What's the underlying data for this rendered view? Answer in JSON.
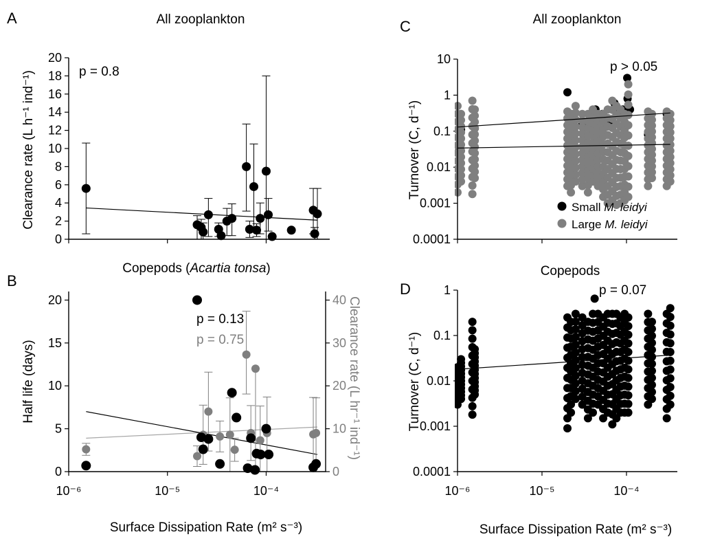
{
  "colors": {
    "black": "#000000",
    "gray": "#7f7f7f",
    "light_gray": "#a6a6a6"
  },
  "footer": {
    "xlabel_left": "Surface Dissipation Rate (m² s⁻³)",
    "xlabel_right": "Surface Dissipation Rate (m² s⁻³)"
  },
  "chart_data": [
    {
      "id": "A",
      "type": "scatter",
      "letter": "A",
      "title": "All zooplankton",
      "ylabel": "Clearance rate (L h⁻¹ ind⁻¹)",
      "x_scale": "log",
      "xlim": [
        1e-06,
        0.0004
      ],
      "ylim": [
        0,
        20
      ],
      "yticks": [
        0,
        2,
        4,
        6,
        8,
        10,
        12,
        14,
        16,
        18,
        20
      ],
      "annotation": "p = 0.8",
      "points": [
        {
          "x": 1.5e-06,
          "y": 5.6,
          "lo": 0.6,
          "hi": 10.6
        },
        {
          "x": 2e-05,
          "y": 1.6,
          "lo": 0.0,
          "hi": 2.6
        },
        {
          "x": 2.2e-05,
          "y": 1.3,
          "lo": 0.0,
          "hi": 2.2
        },
        {
          "x": 2.3e-05,
          "y": 0.8,
          "lo": 0.0,
          "hi": 1.8
        },
        {
          "x": 2.6e-05,
          "y": 2.7,
          "lo": 0.3,
          "hi": 4.5
        },
        {
          "x": 3.3e-05,
          "y": 1.1,
          "lo": 0.3,
          "hi": 1.8
        },
        {
          "x": 3.5e-05,
          "y": 0.4
        },
        {
          "x": 4e-05,
          "y": 2.0,
          "lo": 0.4,
          "hi": 3.4
        },
        {
          "x": 4.5e-05,
          "y": 2.3,
          "lo": 0.4,
          "hi": 3.9
        },
        {
          "x": 6.3e-05,
          "y": 8.0,
          "lo": 3.1,
          "hi": 12.7
        },
        {
          "x": 6.8e-05,
          "y": 1.1,
          "lo": 0.2,
          "hi": 2.0
        },
        {
          "x": 7.5e-05,
          "y": 5.8,
          "lo": 1.1,
          "hi": 10.5
        },
        {
          "x": 8e-05,
          "y": 1.0,
          "lo": 0.3,
          "hi": 1.7
        },
        {
          "x": 8.7e-05,
          "y": 2.3,
          "lo": 0.6,
          "hi": 4.0
        },
        {
          "x": 0.0001,
          "y": 7.5,
          "lo": 0.0,
          "hi": 18.0
        },
        {
          "x": 0.000105,
          "y": 2.7,
          "lo": 0.9,
          "hi": 4.5
        },
        {
          "x": 0.000115,
          "y": 0.3
        },
        {
          "x": 0.00018,
          "y": 1.0
        },
        {
          "x": 0.0003,
          "y": 3.2,
          "lo": 0.6,
          "hi": 5.6
        },
        {
          "x": 0.00031,
          "y": 0.6,
          "lo": 0.0,
          "hi": 1.3
        },
        {
          "x": 0.00033,
          "y": 2.8,
          "lo": 0.0,
          "hi": 5.6
        }
      ],
      "trend": {
        "x": [
          1.5e-06,
          0.00033
        ],
        "y": [
          3.45,
          2.1
        ]
      }
    },
    {
      "id": "B",
      "type": "scatter",
      "letter": "B",
      "title": "Copepods (Acartia tonsa)",
      "title_plain": "Copepods (",
      "title_italic": "Acartia tonsa",
      "title_close": ")",
      "ylabel": "Half life (days)",
      "ylabel_right": "Clearance rate (L hr⁻¹ ind⁻¹)",
      "x_scale": "log",
      "xlim": [
        1e-06,
        0.0004
      ],
      "ylim": [
        0,
        21
      ],
      "ylim_right": [
        0,
        42
      ],
      "yticks": [
        0,
        5,
        10,
        15,
        20
      ],
      "yticks_right": [
        0,
        10,
        20,
        30,
        40
      ],
      "xticks": [
        1e-06,
        1e-05,
        0.0001
      ],
      "xtick_labels": [
        "10⁻⁶",
        "10⁻⁵",
        "10⁻⁴"
      ],
      "annotation_black": "p = 0.13",
      "annotation_gray": "p = 0.75",
      "series": [
        {
          "name": "Half life",
          "color": "#000000",
          "axis": "left",
          "points": [
            {
              "x": 1.5e-06,
              "y": 0.7
            },
            {
              "x": 2e-05,
              "y": 20.0
            },
            {
              "x": 2.2e-05,
              "y": 4.0
            },
            {
              "x": 2.3e-05,
              "y": 2.6
            },
            {
              "x": 2.6e-05,
              "y": 3.8
            },
            {
              "x": 3.4e-05,
              "y": 0.9
            },
            {
              "x": 4.5e-05,
              "y": 9.2
            },
            {
              "x": 5e-05,
              "y": 6.3
            },
            {
              "x": 6.5e-05,
              "y": 0.4
            },
            {
              "x": 7e-05,
              "y": 3.9
            },
            {
              "x": 7.7e-05,
              "y": 0.2
            },
            {
              "x": 8e-05,
              "y": 2.1
            },
            {
              "x": 8.8e-05,
              "y": 2.0
            },
            {
              "x": 0.0001,
              "y": 5.0
            },
            {
              "x": 0.000106,
              "y": 2.0
            },
            {
              "x": 0.0003,
              "y": 0.5
            },
            {
              "x": 0.00032,
              "y": 0.9
            }
          ],
          "trend": {
            "x": [
              1.5e-06,
              0.00033
            ],
            "y": [
              7.0,
              2.0
            ]
          }
        },
        {
          "name": "Clearance rate",
          "color": "#7f7f7f",
          "axis": "right",
          "points": [
            {
              "x": 1.5e-06,
              "y": 5.2,
              "lo": 3.8,
              "hi": 6.6
            },
            {
              "x": 2e-05,
              "y": 3.6,
              "lo": 1.2,
              "hi": 6.0
            },
            {
              "x": 2.3e-05,
              "y": 8.6,
              "lo": 1.7,
              "hi": 15.5
            },
            {
              "x": 2.6e-05,
              "y": 14.0,
              "lo": 4.8,
              "hi": 23.2
            },
            {
              "x": 3.4e-05,
              "y": 8.2,
              "lo": 4.6,
              "hi": 11.8
            },
            {
              "x": 4.3e-05,
              "y": 8.6,
              "lo": 0.0,
              "hi": 17.2
            },
            {
              "x": 4.8e-05,
              "y": 5.1,
              "lo": 2.4,
              "hi": 7.8
            },
            {
              "x": 6.3e-05,
              "y": 27.3,
              "lo": 18.1,
              "hi": 37.4
            },
            {
              "x": 7e-05,
              "y": 9.0,
              "lo": 2.6,
              "hi": 15.4
            },
            {
              "x": 7.8e-05,
              "y": 24.0,
              "lo": 0.0,
              "hi": 24.0
            },
            {
              "x": 8.7e-05,
              "y": 7.3,
              "lo": 0.0,
              "hi": 15.3
            },
            {
              "x": 0.000102,
              "y": 9.0,
              "lo": 0.0,
              "hi": 17.4
            },
            {
              "x": 0.0003,
              "y": 8.7,
              "lo": 0.0,
              "hi": 17.3
            },
            {
              "x": 0.00032,
              "y": 9.0,
              "lo": 0.0,
              "hi": 17.2
            }
          ],
          "trend": {
            "x": [
              1.5e-06,
              0.00033
            ],
            "y": [
              7.8,
              10.4
            ]
          }
        }
      ]
    },
    {
      "id": "C",
      "type": "scatter",
      "letter": "C",
      "title": "All zooplankton",
      "ylabel": "Turnover (C, d⁻¹)",
      "x_scale": "log",
      "y_scale": "log",
      "xlim": [
        1e-06,
        0.0004
      ],
      "ylim": [
        0.0001,
        10
      ],
      "yticks": [
        0.0001,
        0.001,
        0.01,
        0.1,
        1,
        10
      ],
      "ytick_labels": [
        "0.0001",
        "0.001",
        "0.01",
        "0.1",
        "1",
        "10"
      ],
      "annotation": "p > 0.05",
      "legend_position": "bottom-right",
      "series": [
        {
          "name": "Small",
          "name_italic": "M. leidyi",
          "color": "#000000",
          "points": [
            {
              "x": 1.1e-06,
              "y": 0.11
            },
            {
              "x": 1.05e-06,
              "y": 0.03
            },
            {
              "x": 1.6e-06,
              "y": 0.12
            },
            {
              "x": 2e-05,
              "y": 1.2
            },
            {
              "x": 2.2e-05,
              "y": 0.3
            },
            {
              "x": 3e-05,
              "y": 0.15
            },
            {
              "x": 3.6e-05,
              "y": 0.12
            },
            {
              "x": 4.3e-05,
              "y": 0.4
            },
            {
              "x": 5.2e-05,
              "y": 0.3
            },
            {
              "x": 6e-05,
              "y": 0.2
            },
            {
              "x": 6.8e-05,
              "y": 0.15
            },
            {
              "x": 7.2e-05,
              "y": 0.6
            },
            {
              "x": 7.6e-05,
              "y": 0.45
            },
            {
              "x": 8.2e-05,
              "y": 0.35
            },
            {
              "x": 9e-05,
              "y": 0.4
            },
            {
              "x": 9.4e-05,
              "y": 0.3
            },
            {
              "x": 0.000102,
              "y": 3.0
            },
            {
              "x": 0.000103,
              "y": 0.8
            },
            {
              "x": 0.00011,
              "y": 0.4
            },
            {
              "x": 0.00018,
              "y": 0.08
            },
            {
              "x": 0.0003,
              "y": 0.3
            }
          ],
          "trend": {
            "x": [
              1e-06,
              0.00033
            ],
            "y": [
              0.13,
              0.32
            ]
          }
        },
        {
          "name": "Large",
          "name_italic": "M. leidyi",
          "color": "#7f7f7f",
          "columns": [
            {
              "x": 1e-06,
              "ymin": 0.002,
              "ymax": 0.5
            },
            {
              "x": 1.1e-06,
              "ymin": 0.004,
              "ymax": 0.3
            },
            {
              "x": 1.5e-06,
              "ymin": 0.0018,
              "ymax": 0.7
            },
            {
              "x": 1.6e-06,
              "ymin": 0.005,
              "ymax": 0.4
            },
            {
              "x": 2e-05,
              "ymin": 0.003,
              "ymax": 0.35
            },
            {
              "x": 2.2e-05,
              "ymin": 0.002,
              "ymax": 0.3
            },
            {
              "x": 2.5e-05,
              "ymin": 0.004,
              "ymax": 0.5
            },
            {
              "x": 3e-05,
              "ymin": 0.003,
              "ymax": 0.3
            },
            {
              "x": 3.5e-05,
              "ymin": 0.002,
              "ymax": 0.3
            },
            {
              "x": 4e-05,
              "ymin": 0.004,
              "ymax": 0.4
            },
            {
              "x": 4.6e-05,
              "ymin": 0.003,
              "ymax": 0.3
            },
            {
              "x": 5.3e-05,
              "ymin": 0.0015,
              "ymax": 0.3
            },
            {
              "x": 6e-05,
              "ymin": 0.001,
              "ymax": 0.4
            },
            {
              "x": 6.8e-05,
              "ymin": 0.0012,
              "ymax": 0.7
            },
            {
              "x": 7.6e-05,
              "ymin": 0.0009,
              "ymax": 0.5
            },
            {
              "x": 8.5e-05,
              "ymin": 0.001,
              "ymax": 0.4
            },
            {
              "x": 9.5e-05,
              "ymin": 0.0012,
              "ymax": 0.3
            },
            {
              "x": 0.000105,
              "ymin": 0.0015,
              "ymax": 2.0
            },
            {
              "x": 0.00018,
              "ymin": 0.003,
              "ymax": 0.35
            },
            {
              "x": 0.0002,
              "ymin": 0.005,
              "ymax": 0.3
            },
            {
              "x": 0.0003,
              "ymin": 0.003,
              "ymax": 0.35
            },
            {
              "x": 0.00033,
              "ymin": 0.004,
              "ymax": 0.3
            }
          ],
          "trend": {
            "x": [
              1e-06,
              0.00033
            ],
            "y": [
              0.034,
              0.043
            ]
          }
        }
      ]
    },
    {
      "id": "D",
      "type": "scatter",
      "letter": "D",
      "title": "Copepods",
      "ylabel": "Turnover (C, d⁻¹)",
      "x_scale": "log",
      "y_scale": "log",
      "xlim": [
        1e-06,
        0.0004
      ],
      "ylim": [
        0.0001,
        1
      ],
      "yticks": [
        0.0001,
        0.001,
        0.01,
        0.1,
        1
      ],
      "ytick_labels": [
        "0.0001",
        "0.001",
        "0.01",
        "0.1",
        "1"
      ],
      "xticks": [
        1e-06,
        1e-05,
        0.0001
      ],
      "xtick_labels": [
        "10⁻⁶",
        "10⁻⁵",
        "10⁻⁴"
      ],
      "annotation": "p = 0.07",
      "series": [
        {
          "name": "Copepods",
          "color": "#000000",
          "columns": [
            {
              "x": 1e-06,
              "ymin": 0.003,
              "ymax": 0.02
            },
            {
              "x": 1.1e-06,
              "ymin": 0.004,
              "ymax": 0.03
            },
            {
              "x": 1.5e-06,
              "ymin": 0.0018,
              "ymax": 0.2
            },
            {
              "x": 1.6e-06,
              "ymin": 0.005,
              "ymax": 0.05
            },
            {
              "x": 2e-05,
              "ymin": 0.0009,
              "ymax": 0.25
            },
            {
              "x": 2.2e-05,
              "ymin": 0.002,
              "ymax": 0.2
            },
            {
              "x": 2.5e-05,
              "ymin": 0.004,
              "ymax": 0.3
            },
            {
              "x": 3e-05,
              "ymin": 0.003,
              "ymax": 0.25
            },
            {
              "x": 3.5e-05,
              "ymin": 0.0015,
              "ymax": 0.2
            },
            {
              "x": 4e-05,
              "ymin": 0.002,
              "ymax": 0.3
            },
            {
              "x": 4.6e-05,
              "ymin": 0.003,
              "ymax": 0.3
            },
            {
              "x": 5.3e-05,
              "ymin": 0.0015,
              "ymax": 0.25
            },
            {
              "x": 6e-05,
              "ymin": 0.002,
              "ymax": 0.3
            },
            {
              "x": 6.8e-05,
              "ymin": 0.0011,
              "ymax": 0.3
            },
            {
              "x": 7.6e-05,
              "ymin": 0.0015,
              "ymax": 0.3
            },
            {
              "x": 8.5e-05,
              "ymin": 0.002,
              "ymax": 0.25
            },
            {
              "x": 9.5e-05,
              "ymin": 0.002,
              "ymax": 0.3
            },
            {
              "x": 0.000105,
              "ymin": 0.002,
              "ymax": 0.25
            },
            {
              "x": 0.00018,
              "ymin": 0.003,
              "ymax": 0.3
            },
            {
              "x": 0.0002,
              "ymin": 0.004,
              "ymax": 0.2
            },
            {
              "x": 0.0003,
              "ymin": 0.0015,
              "ymax": 0.3
            },
            {
              "x": 0.00033,
              "ymin": 0.003,
              "ymax": 0.4
            }
          ],
          "extra_points": [
            {
              "x": 4.2e-05,
              "y": 0.65
            }
          ],
          "trend": {
            "x": [
              1e-06,
              0.00033
            ],
            "y": [
              0.018,
              0.037
            ]
          }
        }
      ]
    }
  ]
}
